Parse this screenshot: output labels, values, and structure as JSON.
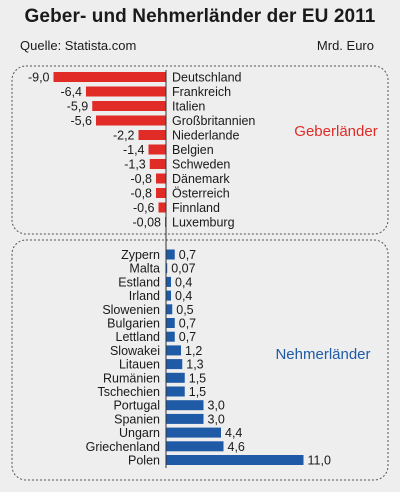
{
  "header": {
    "title": "Geber- und Nehmerländer der EU 2011",
    "source": "Quelle: Statista.com",
    "unit": "Mrd. Euro"
  },
  "colors": {
    "donor": "#e02b27",
    "recipient": "#1f5aa6",
    "background": "#eeeeee",
    "box_border": "#555555"
  },
  "chart_data": [
    {
      "type": "bar",
      "orientation": "horizontal",
      "group_label": "Geberländer",
      "color": "#e02b27",
      "categories": [
        "Deutschland",
        "Frankreich",
        "Italien",
        "Großbritannien",
        "Niederlande",
        "Belgien",
        "Schweden",
        "Dänemark",
        "Österreich",
        "Finnland",
        "Luxemburg"
      ],
      "values": [
        -9.0,
        -6.4,
        -5.9,
        -5.6,
        -2.2,
        -1.4,
        -1.3,
        -0.8,
        -0.8,
        -0.6,
        -0.08
      ],
      "value_labels": [
        "-9,0",
        "-6,4",
        "-5,9",
        "-5,6",
        "-2,2",
        "-1,4",
        "-1,3",
        "-0,8",
        "-0,8",
        "-0,6",
        "-0,08"
      ]
    },
    {
      "type": "bar",
      "orientation": "horizontal",
      "group_label": "Nehmerländer",
      "color": "#1f5aa6",
      "categories": [
        "Zypern",
        "Malta",
        "Estland",
        "Irland",
        "Slowenien",
        "Bulgarien",
        "Lettland",
        "Slowakei",
        "Litauen",
        "Rumänien",
        "Tschechien",
        "Portugal",
        "Spanien",
        "Ungarn",
        "Griechenland",
        "Polen"
      ],
      "values": [
        0.7,
        0.07,
        0.4,
        0.4,
        0.5,
        0.7,
        0.7,
        1.2,
        1.3,
        1.5,
        1.5,
        3.0,
        3.0,
        4.4,
        4.6,
        11.0
      ],
      "value_labels": [
        "0,7",
        "0,07",
        "0,4",
        "0,4",
        "0,5",
        "0,7",
        "0,7",
        "1,2",
        "1,3",
        "1,5",
        "1,5",
        "3,0",
        "3,0",
        "4,4",
        "4,6",
        "11,0"
      ]
    }
  ]
}
